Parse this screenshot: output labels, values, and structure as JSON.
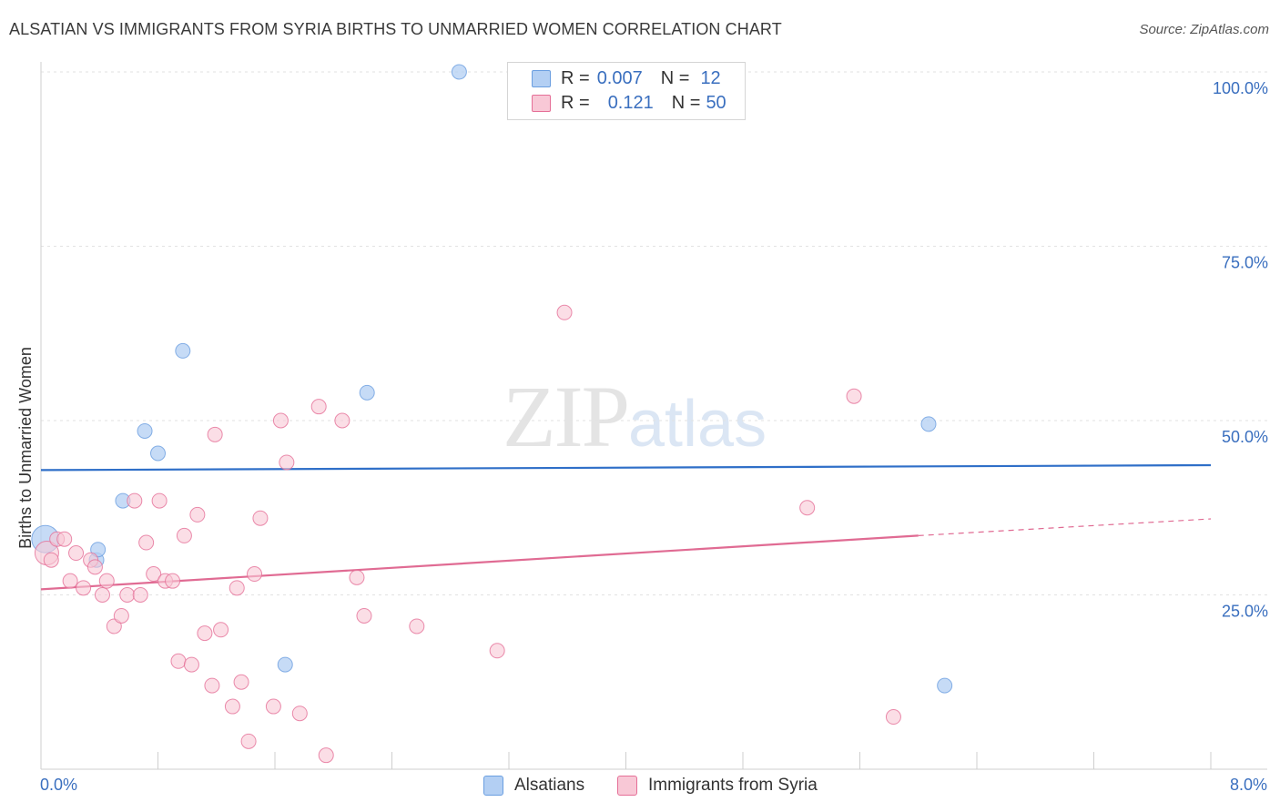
{
  "title": "ALSATIAN VS IMMIGRANTS FROM SYRIA BIRTHS TO UNMARRIED WOMEN CORRELATION CHART",
  "source": "Source: ZipAtlas.com",
  "watermark": {
    "zip": "ZIP",
    "atlas": "atlas"
  },
  "legend": {
    "rows": [
      {
        "r_label": "R =",
        "r_value": "0.007",
        "n_label": "N =",
        "n_value": "12",
        "color": "#a9c8f0"
      },
      {
        "r_label": "R =",
        "r_value": "0.121",
        "n_label": "N =",
        "n_value": "50",
        "color": "#f7bfd0"
      }
    ]
  },
  "bottom_legend": [
    {
      "label": "Alsatians",
      "color": "#b3cff3"
    },
    {
      "label": "Immigrants from Syria",
      "color": "#f8c8d6"
    }
  ],
  "x_axis": {
    "min_label": "0.0%",
    "max_label": "8.0%"
  },
  "chart_data": {
    "type": "scatter",
    "title": "ALSATIAN VS IMMIGRANTS FROM SYRIA BIRTHS TO UNMARRIED WOMEN CORRELATION CHART",
    "xlabel": "",
    "ylabel": "Births to Unmarried Women",
    "xlim": [
      0,
      8
    ],
    "ylim": [
      0,
      100
    ],
    "y_ticks": [
      25,
      50,
      75,
      100
    ],
    "y_tick_labels": [
      "25.0%",
      "50.0%",
      "75.0%",
      "100.0%"
    ],
    "grid": true,
    "series": [
      {
        "name": "Alsatians",
        "color": "#6a9ee0",
        "fill": "#b3cff3",
        "points": [
          [
            0.03,
            33.0
          ],
          [
            0.38,
            30.0
          ],
          [
            0.39,
            31.5
          ],
          [
            0.56,
            38.5
          ],
          [
            0.71,
            48.5
          ],
          [
            0.8,
            45.3
          ],
          [
            0.97,
            60.0
          ],
          [
            1.67,
            15.0
          ],
          [
            2.23,
            54.0
          ],
          [
            2.86,
            100.0
          ],
          [
            6.07,
            49.5
          ],
          [
            6.18,
            12.0
          ]
        ],
        "trend": {
          "x": [
            0,
            8
          ],
          "y": [
            42.9,
            43.6
          ]
        }
      },
      {
        "name": "Immigrants from Syria",
        "color": "#e56f97",
        "fill": "#f8c8d6",
        "points": [
          [
            0.04,
            31.0
          ],
          [
            0.07,
            30.0
          ],
          [
            0.11,
            33.0
          ],
          [
            0.16,
            33.0
          ],
          [
            0.2,
            27.0
          ],
          [
            0.24,
            31.0
          ],
          [
            0.29,
            26.0
          ],
          [
            0.34,
            30.0
          ],
          [
            0.37,
            29.0
          ],
          [
            0.42,
            25.0
          ],
          [
            0.45,
            27.0
          ],
          [
            0.5,
            20.5
          ],
          [
            0.55,
            22.0
          ],
          [
            0.59,
            25.0
          ],
          [
            0.64,
            38.5
          ],
          [
            0.68,
            25.0
          ],
          [
            0.72,
            32.5
          ],
          [
            0.77,
            28.0
          ],
          [
            0.81,
            38.5
          ],
          [
            0.85,
            27.0
          ],
          [
            0.9,
            27.0
          ],
          [
            0.94,
            15.5
          ],
          [
            0.98,
            33.5
          ],
          [
            1.03,
            15.0
          ],
          [
            1.07,
            36.5
          ],
          [
            1.12,
            19.5
          ],
          [
            1.17,
            12.0
          ],
          [
            1.19,
            48.0
          ],
          [
            1.23,
            20.0
          ],
          [
            1.31,
            9.0
          ],
          [
            1.34,
            26.0
          ],
          [
            1.37,
            12.5
          ],
          [
            1.42,
            4.0
          ],
          [
            1.46,
            28.0
          ],
          [
            1.5,
            36.0
          ],
          [
            1.59,
            9.0
          ],
          [
            1.64,
            50.0
          ],
          [
            1.68,
            44.0
          ],
          [
            1.77,
            8.0
          ],
          [
            1.9,
            52.0
          ],
          [
            1.95,
            2.0
          ],
          [
            2.06,
            50.0
          ],
          [
            2.16,
            27.5
          ],
          [
            2.21,
            22.0
          ],
          [
            2.57,
            20.5
          ],
          [
            3.12,
            17.0
          ],
          [
            3.58,
            65.5
          ],
          [
            5.24,
            37.5
          ],
          [
            5.56,
            53.5
          ],
          [
            5.83,
            7.5
          ]
        ],
        "trend": {
          "x": [
            0,
            6.0
          ],
          "y": [
            25.8,
            33.5
          ]
        },
        "trend_extension": {
          "x": [
            6.0,
            8.0
          ],
          "y": [
            33.5,
            35.9
          ]
        }
      }
    ]
  }
}
